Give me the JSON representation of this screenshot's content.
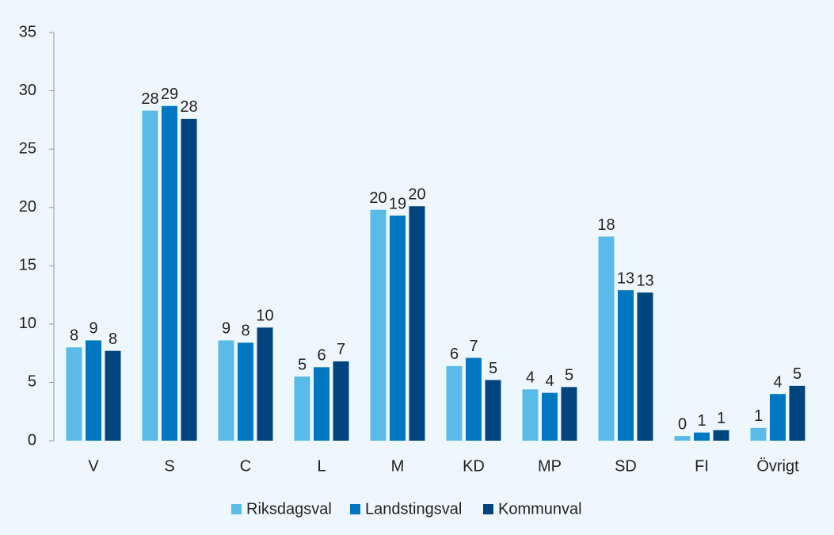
{
  "chart_data": {
    "type": "bar",
    "categories": [
      "V",
      "S",
      "C",
      "L",
      "M",
      "KD",
      "MP",
      "SD",
      "FI",
      "Övrigt"
    ],
    "series": [
      {
        "name": "Riksdagsval",
        "color": "#5bbbe8",
        "values": [
          8.0,
          28.3,
          8.6,
          5.5,
          19.8,
          6.4,
          4.4,
          17.5,
          0.4,
          1.1
        ],
        "value_labels": [
          "8",
          "28",
          "9",
          "5",
          "20",
          "6",
          "4",
          "18",
          "0",
          "1"
        ]
      },
      {
        "name": "Landstingsval",
        "color": "#0077c0",
        "values": [
          8.6,
          28.7,
          8.4,
          6.3,
          19.3,
          7.1,
          4.1,
          12.9,
          0.7,
          4.0
        ],
        "value_labels": [
          "9",
          "29",
          "8",
          "6",
          "19",
          "7",
          "4",
          "13",
          "1",
          "4"
        ]
      },
      {
        "name": "Kommunval",
        "color": "#00457e",
        "values": [
          7.7,
          27.6,
          9.7,
          6.8,
          20.1,
          5.2,
          4.6,
          12.7,
          0.9,
          4.7
        ],
        "value_labels": [
          "8",
          "28",
          "10",
          "7",
          "20",
          "5",
          "5",
          "13",
          "1",
          "5"
        ]
      }
    ],
    "ylim": [
      0,
      35
    ],
    "yticks": [
      0,
      5,
      10,
      15,
      20,
      25,
      30,
      35
    ],
    "grid": false,
    "legend": "bottom"
  }
}
